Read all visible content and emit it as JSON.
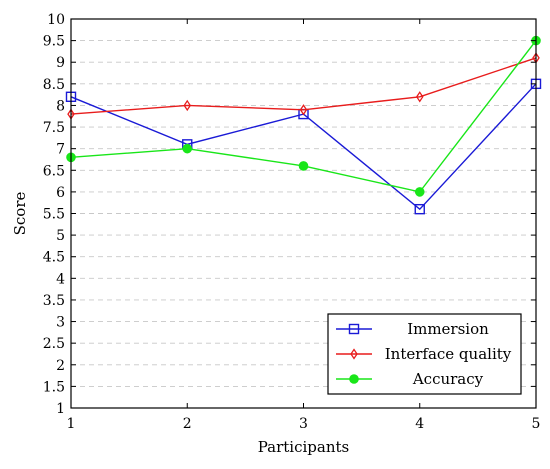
{
  "chart_data": {
    "type": "line",
    "xlabel": "Participants",
    "ylabel": "Score",
    "x": [
      1,
      2,
      3,
      4,
      5
    ],
    "xticks": [
      "1",
      "2",
      "3",
      "4",
      "5"
    ],
    "xlim": [
      1,
      5
    ],
    "ylim": [
      1,
      10
    ],
    "yticks": [
      "1",
      "1.5",
      "2",
      "2.5",
      "3",
      "3.5",
      "4",
      "4.5",
      "5",
      "5.5",
      "6",
      "6.5",
      "7",
      "7.5",
      "8",
      "8.5",
      "9",
      "9.5",
      "10"
    ],
    "grid": "horizontal dashed",
    "legend_position": "bottom-right",
    "series": [
      {
        "name": "Immersion",
        "values": [
          8.2,
          7.1,
          7.8,
          5.6,
          8.5
        ],
        "color": "#1a1ad6",
        "marker": "square-open"
      },
      {
        "name": "Interface quality",
        "values": [
          7.8,
          8.0,
          7.9,
          8.2,
          9.1
        ],
        "color": "#e81c1c",
        "marker": "diamond-open"
      },
      {
        "name": "Accuracy",
        "values": [
          6.8,
          7.0,
          6.6,
          6.0,
          9.5
        ],
        "color": "#19e619",
        "marker": "circle-filled"
      }
    ]
  }
}
